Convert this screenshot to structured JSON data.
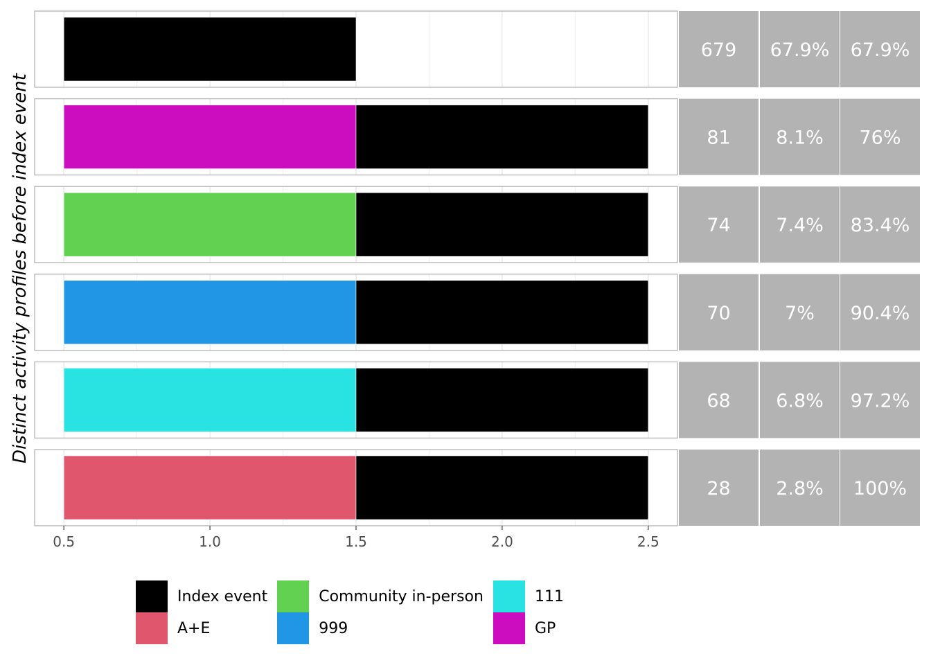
{
  "chart_data": {
    "type": "bar",
    "orientation": "horizontal-stacked-timeline",
    "ylabel": "Distinct activity profiles before index event",
    "xlim": [
      0.4,
      2.6
    ],
    "xticks": [
      0.5,
      1.0,
      1.5,
      2.0,
      2.5
    ],
    "xtick_labels": [
      "0.5",
      "1.0",
      "1.5",
      "2.0",
      "2.5"
    ],
    "grid": true,
    "profiles": [
      {
        "segments": [
          {
            "category": "Index event",
            "start": 0.5,
            "end": 1.5
          }
        ],
        "count": "679",
        "percent": "67.9%",
        "cumulative": "67.9%"
      },
      {
        "segments": [
          {
            "category": "GP",
            "start": 0.5,
            "end": 1.5
          },
          {
            "category": "Index event",
            "start": 1.5,
            "end": 2.5
          }
        ],
        "count": "81",
        "percent": "8.1%",
        "cumulative": "76%"
      },
      {
        "segments": [
          {
            "category": "Community in-person",
            "start": 0.5,
            "end": 1.5
          },
          {
            "category": "Index event",
            "start": 1.5,
            "end": 2.5
          }
        ],
        "count": "74",
        "percent": "7.4%",
        "cumulative": "83.4%"
      },
      {
        "segments": [
          {
            "category": "999",
            "start": 0.5,
            "end": 1.5
          },
          {
            "category": "Index event",
            "start": 1.5,
            "end": 2.5
          }
        ],
        "count": "70",
        "percent": "7%",
        "cumulative": "90.4%"
      },
      {
        "segments": [
          {
            "category": "111",
            "start": 0.5,
            "end": 1.5
          },
          {
            "category": "Index event",
            "start": 1.5,
            "end": 2.5
          }
        ],
        "count": "68",
        "percent": "6.8%",
        "cumulative": "97.2%"
      },
      {
        "segments": [
          {
            "category": "A+E",
            "start": 0.5,
            "end": 1.5
          },
          {
            "category": "Index event",
            "start": 1.5,
            "end": 2.5
          }
        ],
        "count": "28",
        "percent": "2.8%",
        "cumulative": "100%"
      }
    ],
    "legend": {
      "placement": "bottom",
      "columns": [
        [
          {
            "label": "Index event",
            "color": "#000000"
          },
          {
            "label": "A+E",
            "color": "#e0566c"
          }
        ],
        [
          {
            "label": "Community in-person",
            "color": "#62d152"
          },
          {
            "label": "999",
            "color": "#2196e5"
          }
        ],
        [
          {
            "label": "111",
            "color": "#29e3e3"
          },
          {
            "label": "GP",
            "color": "#cc0cbf"
          }
        ]
      ]
    },
    "colors": {
      "Index event": "#000000",
      "A+E": "#e0566c",
      "Community in-person": "#62d152",
      "999": "#2196e5",
      "111": "#29e3e3",
      "GP": "#cc0cbf",
      "stat_cell": "#b3b3b3"
    }
  }
}
